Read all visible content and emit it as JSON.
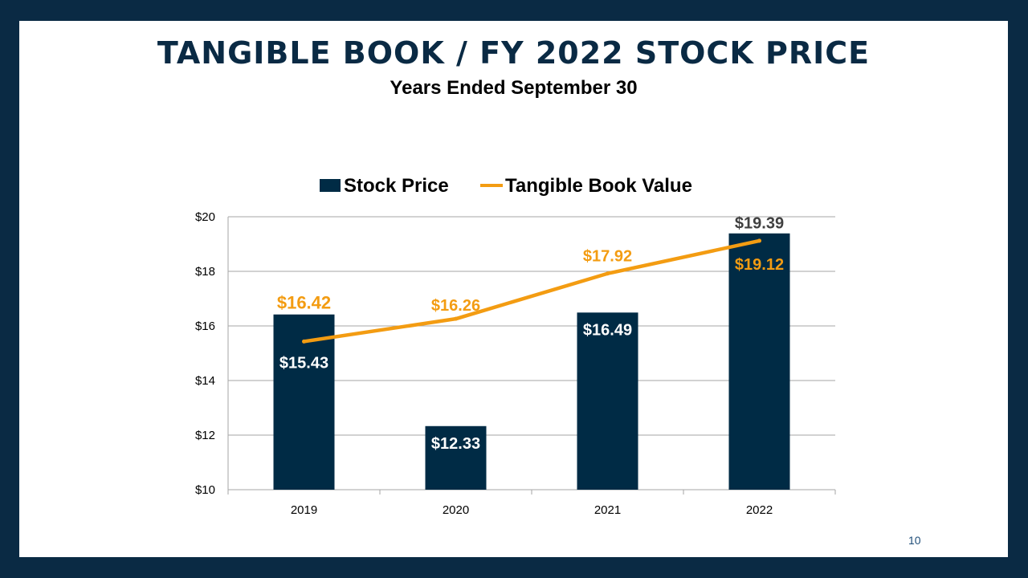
{
  "slide": {
    "title": "TANGIBLE BOOK / FY 2022 STOCK PRICE",
    "subtitle": "Years Ended September 30",
    "page_number": "10"
  },
  "colors": {
    "frame": "#0a2a44",
    "bar": "#002b45",
    "line": "#f39c12",
    "gridline": "#a6a6a6",
    "axis_text": "#000000",
    "label_dark": "#404040"
  },
  "chart_data": {
    "type": "bar",
    "categories": [
      "2019",
      "2020",
      "2021",
      "2022"
    ],
    "series": [
      {
        "name": "Stock Price",
        "type": "bar",
        "values": [
          16.42,
          12.33,
          16.49,
          19.39
        ],
        "labels": [
          "$16.42",
          "$12.33",
          "$16.49",
          "$19.39"
        ]
      },
      {
        "name": "Tangible Book Value",
        "type": "line",
        "values": [
          15.43,
          16.26,
          17.92,
          19.12
        ],
        "labels": [
          "$15.43",
          "$16.26",
          "$17.92",
          "$19.12"
        ]
      }
    ],
    "ylim": [
      10,
      20
    ],
    "yticks": [
      10,
      12,
      14,
      16,
      18,
      20
    ],
    "ytick_labels": [
      "$10",
      "$12",
      "$14",
      "$16",
      "$18",
      "$20"
    ],
    "grid": true,
    "legend_position": "top"
  }
}
